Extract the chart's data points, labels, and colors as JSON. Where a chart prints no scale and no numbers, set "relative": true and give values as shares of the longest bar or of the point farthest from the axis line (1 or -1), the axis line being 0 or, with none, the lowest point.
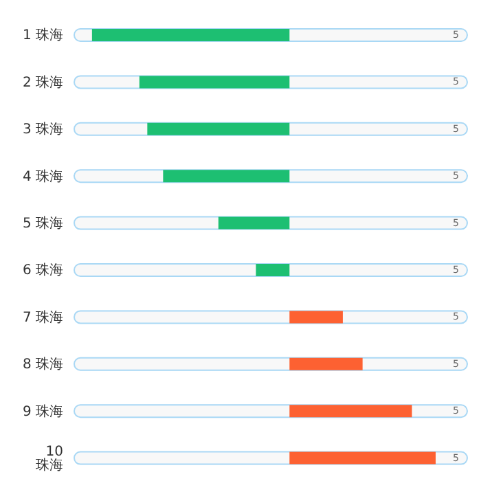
{
  "chart_data": {
    "type": "bar",
    "orientation": "horizontal",
    "relative": true,
    "categories": [
      "1 珠海",
      "2 珠海",
      "3 珠海",
      "4 珠海",
      "5 珠海",
      "6 珠海",
      "7 珠海",
      "8 珠海",
      "9 珠海",
      "10 珠海"
    ],
    "values": [
      -1,
      -0.76,
      -0.72,
      -0.64,
      -0.36,
      -0.17,
      0.27,
      0.37,
      0.62,
      0.74
    ],
    "colors": [
      "#1dbf72",
      "#1dbf72",
      "#1dbf72",
      "#1dbf72",
      "#1dbf72",
      "#1dbf72",
      "#fd6132",
      "#fd6132",
      "#fd6132",
      "#fd6132"
    ],
    "annotations": [
      "5",
      "5",
      "5",
      "5",
      "5",
      "5",
      "5",
      "5",
      "5",
      "5"
    ],
    "grid": false,
    "legend": false
  }
}
